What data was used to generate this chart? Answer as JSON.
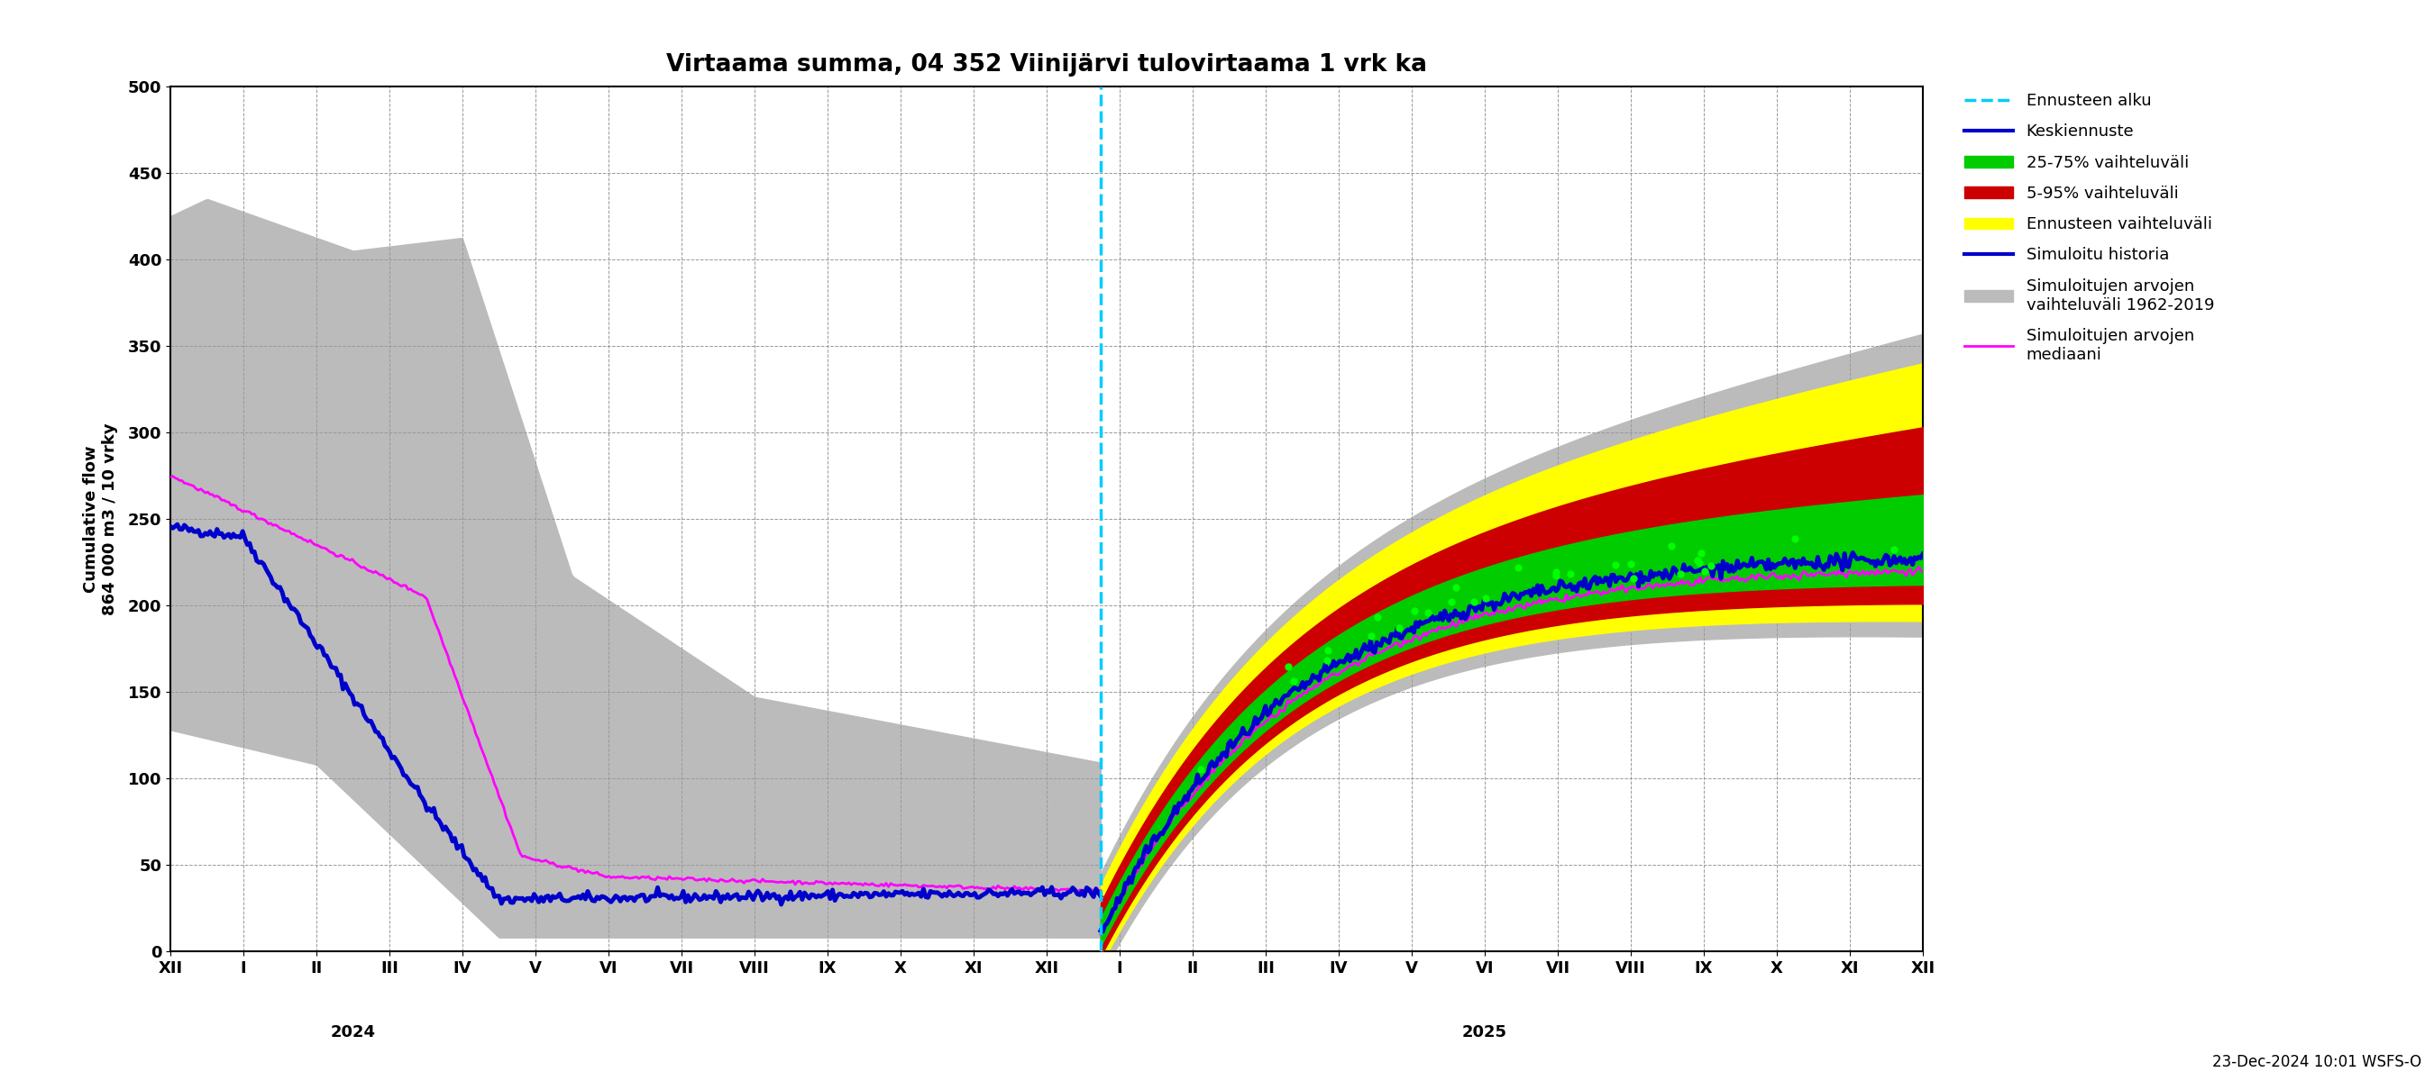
{
  "title": "Virtaama summa, 04 352 Viinijärvi tulovirtaama 1 vrk ka",
  "ylabel_line1": "Cumulative flow",
  "ylabel_line2": "864 000 m3 / 10 vrky",
  "xlabel_2024": "2024",
  "xlabel_2025": "2025",
  "timestamp": "23-Dec-2024 10:01 WSFS-O",
  "ylim": [
    0,
    500
  ],
  "yticks": [
    0,
    50,
    100,
    150,
    200,
    250,
    300,
    350,
    400,
    450,
    500
  ],
  "legend_labels": [
    "Ennusteen alku",
    "Keskiennuste",
    "25-75% vaihteluväli",
    "5-95% vaihteluväli",
    "Ennusteen vaihteluväli",
    "Simuloitu historia",
    "Simuloitujen arvojen\nvaihteluväli 1962-2019",
    "Simuloitujen arvojen\nmediaani"
  ],
  "color_cyan": "#00ccff",
  "color_blue": "#0000cc",
  "color_green": "#00cc00",
  "color_red": "#cc0000",
  "color_yellow": "#ffff00",
  "color_gray": "#bbbbbb",
  "color_magenta": "#ff00ff",
  "color_brightgreen": "#00ff00",
  "bg_color": "#ffffff",
  "grid_color": "#999999",
  "month_labels": [
    "XII",
    "I",
    "II",
    "III",
    "IV",
    "V",
    "VI",
    "VII",
    "VIII",
    "IX",
    "X",
    "XI",
    "XII",
    "I",
    "II",
    "III",
    "IV",
    "V",
    "VI",
    "VII",
    "VIII",
    "IX",
    "X",
    "XI",
    "XII"
  ],
  "vline_x": 12.74
}
